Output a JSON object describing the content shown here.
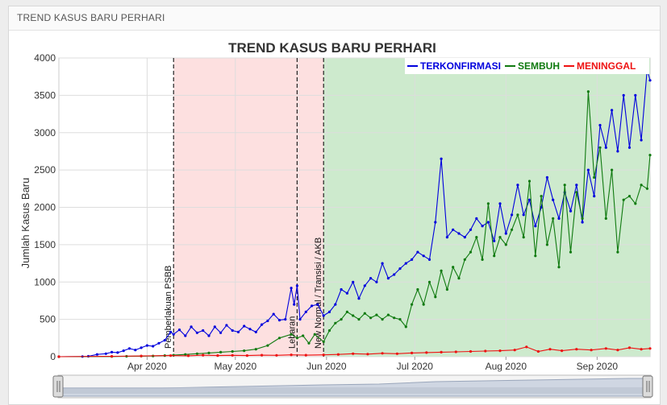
{
  "panel": {
    "title": "TREND KASUS BARU PERHARI"
  },
  "colors": {
    "terkonfirmasi": "#0000dd",
    "sembuh": "#107a10",
    "meninggal": "#ee1111",
    "band_psbb": "#fde0e0",
    "band_new_normal": "#cdeacd"
  },
  "chart_data": {
    "type": "line",
    "title": "TREND KASUS BARU PERHARI",
    "ylabel": "Jumlah Kasus Baru",
    "xlabel": "",
    "ylim": [
      0,
      4000
    ],
    "xlim": [
      "2020-03-02",
      "2020-09-19"
    ],
    "y_ticks": [
      0,
      500,
      1000,
      1500,
      2000,
      2500,
      3000,
      3500,
      4000
    ],
    "x_ticks": [
      {
        "date": "2020-04-01",
        "label": "Apr 2020"
      },
      {
        "date": "2020-05-01",
        "label": "May 2020"
      },
      {
        "date": "2020-06-01",
        "label": "Jun 2020"
      },
      {
        "date": "2020-07-01",
        "label": "Jul 2020"
      },
      {
        "date": "2020-08-01",
        "label": "Aug 2020"
      },
      {
        "date": "2020-09-01",
        "label": "Sep 2020"
      }
    ],
    "grid": true,
    "legend_position": "top-right",
    "shaded_periods": [
      {
        "start": "2020-04-10",
        "end": "2020-05-31",
        "color": "pink"
      },
      {
        "start": "2020-05-31",
        "end": "2020-09-19",
        "color": "green"
      }
    ],
    "events": [
      {
        "date": "2020-04-10",
        "label": "Pemberlakuan PSBB"
      },
      {
        "date": "2020-05-22",
        "label": "Lebaran"
      },
      {
        "date": "2020-05-31",
        "label": "New Normal / Transisi / AKB"
      }
    ],
    "series": [
      {
        "name": "TERKONFIRMASI",
        "color": "#0000dd",
        "points": [
          [
            "2020-03-02",
            0
          ],
          [
            "2020-03-10",
            2
          ],
          [
            "2020-03-12",
            5
          ],
          [
            "2020-03-15",
            30
          ],
          [
            "2020-03-18",
            40
          ],
          [
            "2020-03-20",
            60
          ],
          [
            "2020-03-22",
            55
          ],
          [
            "2020-03-24",
            80
          ],
          [
            "2020-03-26",
            110
          ],
          [
            "2020-03-28",
            90
          ],
          [
            "2020-03-30",
            120
          ],
          [
            "2020-04-01",
            150
          ],
          [
            "2020-04-03",
            140
          ],
          [
            "2020-04-05",
            180
          ],
          [
            "2020-04-07",
            220
          ],
          [
            "2020-04-09",
            330
          ],
          [
            "2020-04-10",
            300
          ],
          [
            "2020-04-12",
            360
          ],
          [
            "2020-04-14",
            280
          ],
          [
            "2020-04-16",
            400
          ],
          [
            "2020-04-18",
            320
          ],
          [
            "2020-04-20",
            350
          ],
          [
            "2020-04-22",
            280
          ],
          [
            "2020-04-24",
            400
          ],
          [
            "2020-04-26",
            320
          ],
          [
            "2020-04-28",
            420
          ],
          [
            "2020-04-30",
            350
          ],
          [
            "2020-05-02",
            330
          ],
          [
            "2020-05-04",
            410
          ],
          [
            "2020-05-06",
            370
          ],
          [
            "2020-05-08",
            330
          ],
          [
            "2020-05-10",
            430
          ],
          [
            "2020-05-12",
            480
          ],
          [
            "2020-05-14",
            570
          ],
          [
            "2020-05-16",
            490
          ],
          [
            "2020-05-18",
            500
          ],
          [
            "2020-05-20",
            920
          ],
          [
            "2020-05-21",
            700
          ],
          [
            "2020-05-22",
            950
          ],
          [
            "2020-05-23",
            500
          ],
          [
            "2020-05-25",
            600
          ],
          [
            "2020-05-27",
            680
          ],
          [
            "2020-05-29",
            700
          ],
          [
            "2020-05-31",
            550
          ],
          [
            "2020-06-02",
            600
          ],
          [
            "2020-06-04",
            700
          ],
          [
            "2020-06-06",
            900
          ],
          [
            "2020-06-08",
            850
          ],
          [
            "2020-06-10",
            1000
          ],
          [
            "2020-06-12",
            780
          ],
          [
            "2020-06-14",
            950
          ],
          [
            "2020-06-16",
            1050
          ],
          [
            "2020-06-18",
            1000
          ],
          [
            "2020-06-20",
            1250
          ],
          [
            "2020-06-22",
            1050
          ],
          [
            "2020-06-24",
            1100
          ],
          [
            "2020-06-26",
            1180
          ],
          [
            "2020-06-28",
            1250
          ],
          [
            "2020-06-30",
            1300
          ],
          [
            "2020-07-02",
            1400
          ],
          [
            "2020-07-04",
            1350
          ],
          [
            "2020-07-06",
            1300
          ],
          [
            "2020-07-08",
            1800
          ],
          [
            "2020-07-10",
            2650
          ],
          [
            "2020-07-12",
            1600
          ],
          [
            "2020-07-14",
            1700
          ],
          [
            "2020-07-16",
            1650
          ],
          [
            "2020-07-18",
            1600
          ],
          [
            "2020-07-20",
            1700
          ],
          [
            "2020-07-22",
            1850
          ],
          [
            "2020-07-24",
            1750
          ],
          [
            "2020-07-26",
            1800
          ],
          [
            "2020-07-28",
            1550
          ],
          [
            "2020-07-30",
            2050
          ],
          [
            "2020-08-01",
            1650
          ],
          [
            "2020-08-03",
            1900
          ],
          [
            "2020-08-05",
            2300
          ],
          [
            "2020-08-07",
            1900
          ],
          [
            "2020-08-09",
            2100
          ],
          [
            "2020-08-11",
            1750
          ],
          [
            "2020-08-13",
            2000
          ],
          [
            "2020-08-15",
            2400
          ],
          [
            "2020-08-17",
            2100
          ],
          [
            "2020-08-19",
            1850
          ],
          [
            "2020-08-21",
            2200
          ],
          [
            "2020-08-23",
            1950
          ],
          [
            "2020-08-25",
            2300
          ],
          [
            "2020-08-27",
            1800
          ],
          [
            "2020-08-29",
            2500
          ],
          [
            "2020-08-31",
            2150
          ],
          [
            "2020-09-02",
            3100
          ],
          [
            "2020-09-04",
            2800
          ],
          [
            "2020-09-06",
            3300
          ],
          [
            "2020-09-08",
            2750
          ],
          [
            "2020-09-10",
            3500
          ],
          [
            "2020-09-12",
            2800
          ],
          [
            "2020-09-14",
            3500
          ],
          [
            "2020-09-16",
            2900
          ],
          [
            "2020-09-18",
            3850
          ],
          [
            "2020-09-19",
            3700
          ]
        ]
      },
      {
        "name": "SEMBUH",
        "color": "#107a10",
        "points": [
          [
            "2020-03-02",
            0
          ],
          [
            "2020-03-20",
            2
          ],
          [
            "2020-03-25",
            5
          ],
          [
            "2020-03-30",
            8
          ],
          [
            "2020-04-03",
            10
          ],
          [
            "2020-04-07",
            15
          ],
          [
            "2020-04-10",
            20
          ],
          [
            "2020-04-14",
            30
          ],
          [
            "2020-04-18",
            40
          ],
          [
            "2020-04-22",
            50
          ],
          [
            "2020-04-26",
            60
          ],
          [
            "2020-04-30",
            70
          ],
          [
            "2020-05-04",
            80
          ],
          [
            "2020-05-08",
            100
          ],
          [
            "2020-05-12",
            150
          ],
          [
            "2020-05-16",
            250
          ],
          [
            "2020-05-20",
            300
          ],
          [
            "2020-05-22",
            250
          ],
          [
            "2020-05-24",
            280
          ],
          [
            "2020-05-26",
            180
          ],
          [
            "2020-05-28",
            300
          ],
          [
            "2020-05-31",
            200
          ],
          [
            "2020-06-02",
            350
          ],
          [
            "2020-06-04",
            450
          ],
          [
            "2020-06-06",
            500
          ],
          [
            "2020-06-08",
            600
          ],
          [
            "2020-06-10",
            550
          ],
          [
            "2020-06-12",
            500
          ],
          [
            "2020-06-14",
            580
          ],
          [
            "2020-06-16",
            520
          ],
          [
            "2020-06-18",
            560
          ],
          [
            "2020-06-20",
            500
          ],
          [
            "2020-06-22",
            560
          ],
          [
            "2020-06-24",
            520
          ],
          [
            "2020-06-26",
            500
          ],
          [
            "2020-06-28",
            400
          ],
          [
            "2020-06-30",
            700
          ],
          [
            "2020-07-02",
            900
          ],
          [
            "2020-07-04",
            700
          ],
          [
            "2020-07-06",
            1000
          ],
          [
            "2020-07-08",
            800
          ],
          [
            "2020-07-10",
            1150
          ],
          [
            "2020-07-12",
            900
          ],
          [
            "2020-07-14",
            1200
          ],
          [
            "2020-07-16",
            1050
          ],
          [
            "2020-07-18",
            1300
          ],
          [
            "2020-07-20",
            1400
          ],
          [
            "2020-07-22",
            1600
          ],
          [
            "2020-07-24",
            1300
          ],
          [
            "2020-07-26",
            2050
          ],
          [
            "2020-07-28",
            1350
          ],
          [
            "2020-07-30",
            1600
          ],
          [
            "2020-08-01",
            1500
          ],
          [
            "2020-08-03",
            1700
          ],
          [
            "2020-08-05",
            1900
          ],
          [
            "2020-08-07",
            1600
          ],
          [
            "2020-08-09",
            2350
          ],
          [
            "2020-08-11",
            1350
          ],
          [
            "2020-08-13",
            2150
          ],
          [
            "2020-08-15",
            1500
          ],
          [
            "2020-08-17",
            1850
          ],
          [
            "2020-08-19",
            1200
          ],
          [
            "2020-08-21",
            2300
          ],
          [
            "2020-08-23",
            1400
          ],
          [
            "2020-08-25",
            2200
          ],
          [
            "2020-08-27",
            1850
          ],
          [
            "2020-08-29",
            3550
          ],
          [
            "2020-08-31",
            2400
          ],
          [
            "2020-09-02",
            2800
          ],
          [
            "2020-09-04",
            1850
          ],
          [
            "2020-09-06",
            2500
          ],
          [
            "2020-09-08",
            1400
          ],
          [
            "2020-09-10",
            2100
          ],
          [
            "2020-09-12",
            2150
          ],
          [
            "2020-09-14",
            2050
          ],
          [
            "2020-09-16",
            2300
          ],
          [
            "2020-09-18",
            2250
          ],
          [
            "2020-09-19",
            2700
          ]
        ]
      },
      {
        "name": "MENINGGAL",
        "color": "#ee1111",
        "points": [
          [
            "2020-03-02",
            0
          ],
          [
            "2020-03-20",
            5
          ],
          [
            "2020-03-30",
            10
          ],
          [
            "2020-04-09",
            15
          ],
          [
            "2020-04-15",
            12
          ],
          [
            "2020-04-20",
            20
          ],
          [
            "2020-04-25",
            15
          ],
          [
            "2020-04-30",
            18
          ],
          [
            "2020-05-05",
            15
          ],
          [
            "2020-05-10",
            20
          ],
          [
            "2020-05-15",
            18
          ],
          [
            "2020-05-20",
            25
          ],
          [
            "2020-05-25",
            20
          ],
          [
            "2020-05-31",
            25
          ],
          [
            "2020-06-05",
            30
          ],
          [
            "2020-06-10",
            40
          ],
          [
            "2020-06-15",
            35
          ],
          [
            "2020-06-20",
            45
          ],
          [
            "2020-06-25",
            40
          ],
          [
            "2020-06-30",
            50
          ],
          [
            "2020-07-05",
            55
          ],
          [
            "2020-07-10",
            60
          ],
          [
            "2020-07-15",
            65
          ],
          [
            "2020-07-20",
            70
          ],
          [
            "2020-07-25",
            75
          ],
          [
            "2020-07-30",
            80
          ],
          [
            "2020-08-04",
            90
          ],
          [
            "2020-08-08",
            130
          ],
          [
            "2020-08-12",
            70
          ],
          [
            "2020-08-16",
            100
          ],
          [
            "2020-08-20",
            80
          ],
          [
            "2020-08-25",
            100
          ],
          [
            "2020-08-30",
            90
          ],
          [
            "2020-09-04",
            110
          ],
          [
            "2020-09-08",
            90
          ],
          [
            "2020-09-12",
            120
          ],
          [
            "2020-09-16",
            100
          ],
          [
            "2020-09-19",
            110
          ]
        ]
      }
    ]
  }
}
